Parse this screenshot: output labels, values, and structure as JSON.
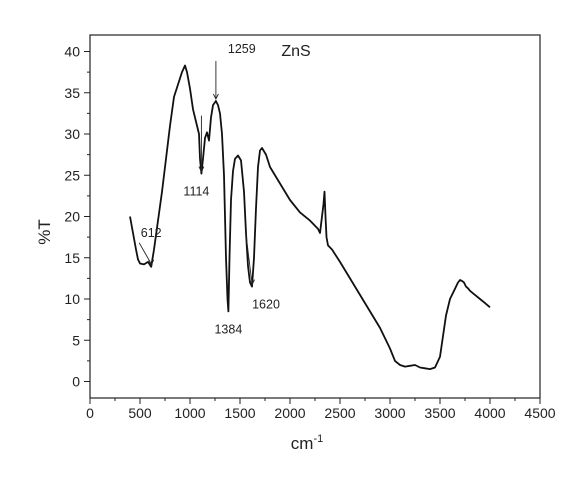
{
  "chart_data": {
    "type": "line",
    "title": "ZnS",
    "xlabel": "cm",
    "xlabel_superscript": "-1",
    "ylabel": "%T",
    "xlim": [
      0,
      4500
    ],
    "ylim": [
      -2,
      42
    ],
    "x_ticks": [
      0,
      500,
      1000,
      1500,
      2000,
      2500,
      3000,
      3500,
      4000,
      4500
    ],
    "y_ticks": [
      0,
      5,
      10,
      15,
      20,
      25,
      30,
      35,
      40
    ],
    "grid": false,
    "legend": "none",
    "line_color": "#111111",
    "series": [
      {
        "x": [
          400,
          430,
          460,
          480,
          500,
          540,
          580,
          612,
          640,
          680,
          720,
          760,
          800,
          840,
          880,
          920,
          950,
          970,
          1000,
          1030,
          1060,
          1090,
          1100,
          1114,
          1130,
          1150,
          1170,
          1190,
          1210,
          1230,
          1259,
          1280,
          1300,
          1320,
          1340,
          1360,
          1375,
          1384,
          1395,
          1410,
          1430,
          1450,
          1480,
          1510,
          1540,
          1560,
          1580,
          1600,
          1620,
          1640,
          1660,
          1680,
          1700,
          1720,
          1760,
          1800,
          1900,
          2000,
          2100,
          2200,
          2280,
          2300,
          2320,
          2335,
          2345,
          2355,
          2365,
          2380,
          2420,
          2500,
          2600,
          2700,
          2800,
          2900,
          3000,
          3050,
          3100,
          3150,
          3200,
          3250,
          3300,
          3350,
          3400,
          3450,
          3500,
          3530,
          3560,
          3600,
          3640,
          3680,
          3700,
          3720,
          3740,
          3760,
          3780,
          3800,
          3850,
          3900,
          3950,
          4000
        ],
        "y": [
          20,
          18,
          16,
          14.8,
          14.3,
          14.2,
          14.5,
          13.9,
          16,
          19.5,
          23,
          27,
          31,
          34.5,
          36,
          37.5,
          38.3,
          37.5,
          35.5,
          33,
          31.5,
          30,
          27,
          25.2,
          27,
          29.5,
          30.2,
          29.2,
          32,
          33.5,
          34,
          33.5,
          32.5,
          30,
          25,
          15,
          10,
          8.5,
          15,
          22,
          25.5,
          27,
          27.4,
          26.8,
          23,
          18,
          14,
          12,
          11.5,
          15,
          21,
          26,
          28,
          28.3,
          27.5,
          26,
          24,
          22,
          20.5,
          19.5,
          18.5,
          18,
          20,
          21.5,
          23,
          20,
          17.5,
          16.5,
          16,
          14.5,
          12.5,
          10.5,
          8.5,
          6.5,
          4,
          2.5,
          2,
          1.8,
          1.9,
          2,
          1.7,
          1.6,
          1.5,
          1.7,
          3,
          5.5,
          8,
          10,
          11,
          12,
          12.3,
          12.2,
          12,
          11.5,
          11.3,
          11,
          10.5,
          10,
          9.5,
          9
        ]
      }
    ],
    "annotations": [
      {
        "text": "612",
        "x": 612,
        "y": 13.9
      },
      {
        "text": "1114",
        "x": 1114,
        "y": 25.2
      },
      {
        "text": "1259",
        "x": 1259,
        "y": 34
      },
      {
        "text": "1384",
        "x": 1384,
        "y": 8.5
      },
      {
        "text": "1620",
        "x": 1620,
        "y": 11.5
      }
    ]
  }
}
